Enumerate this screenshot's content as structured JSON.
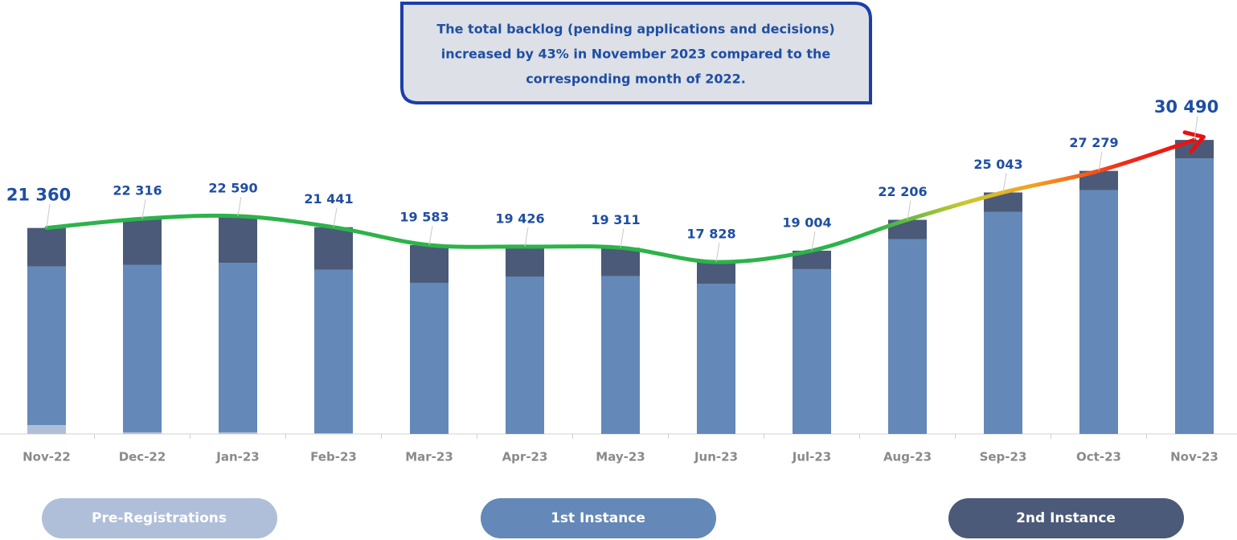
{
  "chart_data": {
    "type": "bar",
    "annotation": [
      "The total backlog (pending applications and decisions)",
      "increased by 43% in November 2023 compared to the",
      "corresponding month of 2022."
    ],
    "categories": [
      "Nov-22",
      "Dec-22",
      "Jan-23",
      "Feb-23",
      "Mar-23",
      "Apr-23",
      "May-23",
      "Jun-23",
      "Jul-23",
      "Aug-23",
      "Sep-23",
      "Oct-23",
      "Nov-23"
    ],
    "series": [
      {
        "name": "Pre-Registrations",
        "color": "#b0bfd9",
        "values": [
          920,
          170,
          170,
          80,
          0,
          0,
          0,
          0,
          0,
          0,
          0,
          0,
          0
        ]
      },
      {
        "name": "1st Instance",
        "color": "#6488b8",
        "values": [
          16440,
          17370,
          17570,
          16940,
          15670,
          16300,
          16360,
          15580,
          17090,
          20210,
          23040,
          25280,
          28570
        ]
      },
      {
        "name": "2nd Instance",
        "color": "#4a5a78",
        "values": [
          4000,
          4776,
          4850,
          4421,
          3913,
          3126,
          2951,
          2248,
          1914,
          1996,
          2003,
          1999,
          1920
        ]
      }
    ],
    "totals": {
      "values": [
        21360,
        22316,
        22590,
        21441,
        19583,
        19426,
        19311,
        17828,
        19004,
        22206,
        25043,
        27279,
        30490
      ],
      "value_labels": [
        "21 360",
        "22 316",
        "22 590",
        "21 441",
        "19 583",
        "19 426",
        "19 311",
        "17 828",
        "19 004",
        "22 206",
        "25 043",
        "27 279",
        "30 490"
      ]
    },
    "ylim": [
      0,
      40000
    ]
  }
}
